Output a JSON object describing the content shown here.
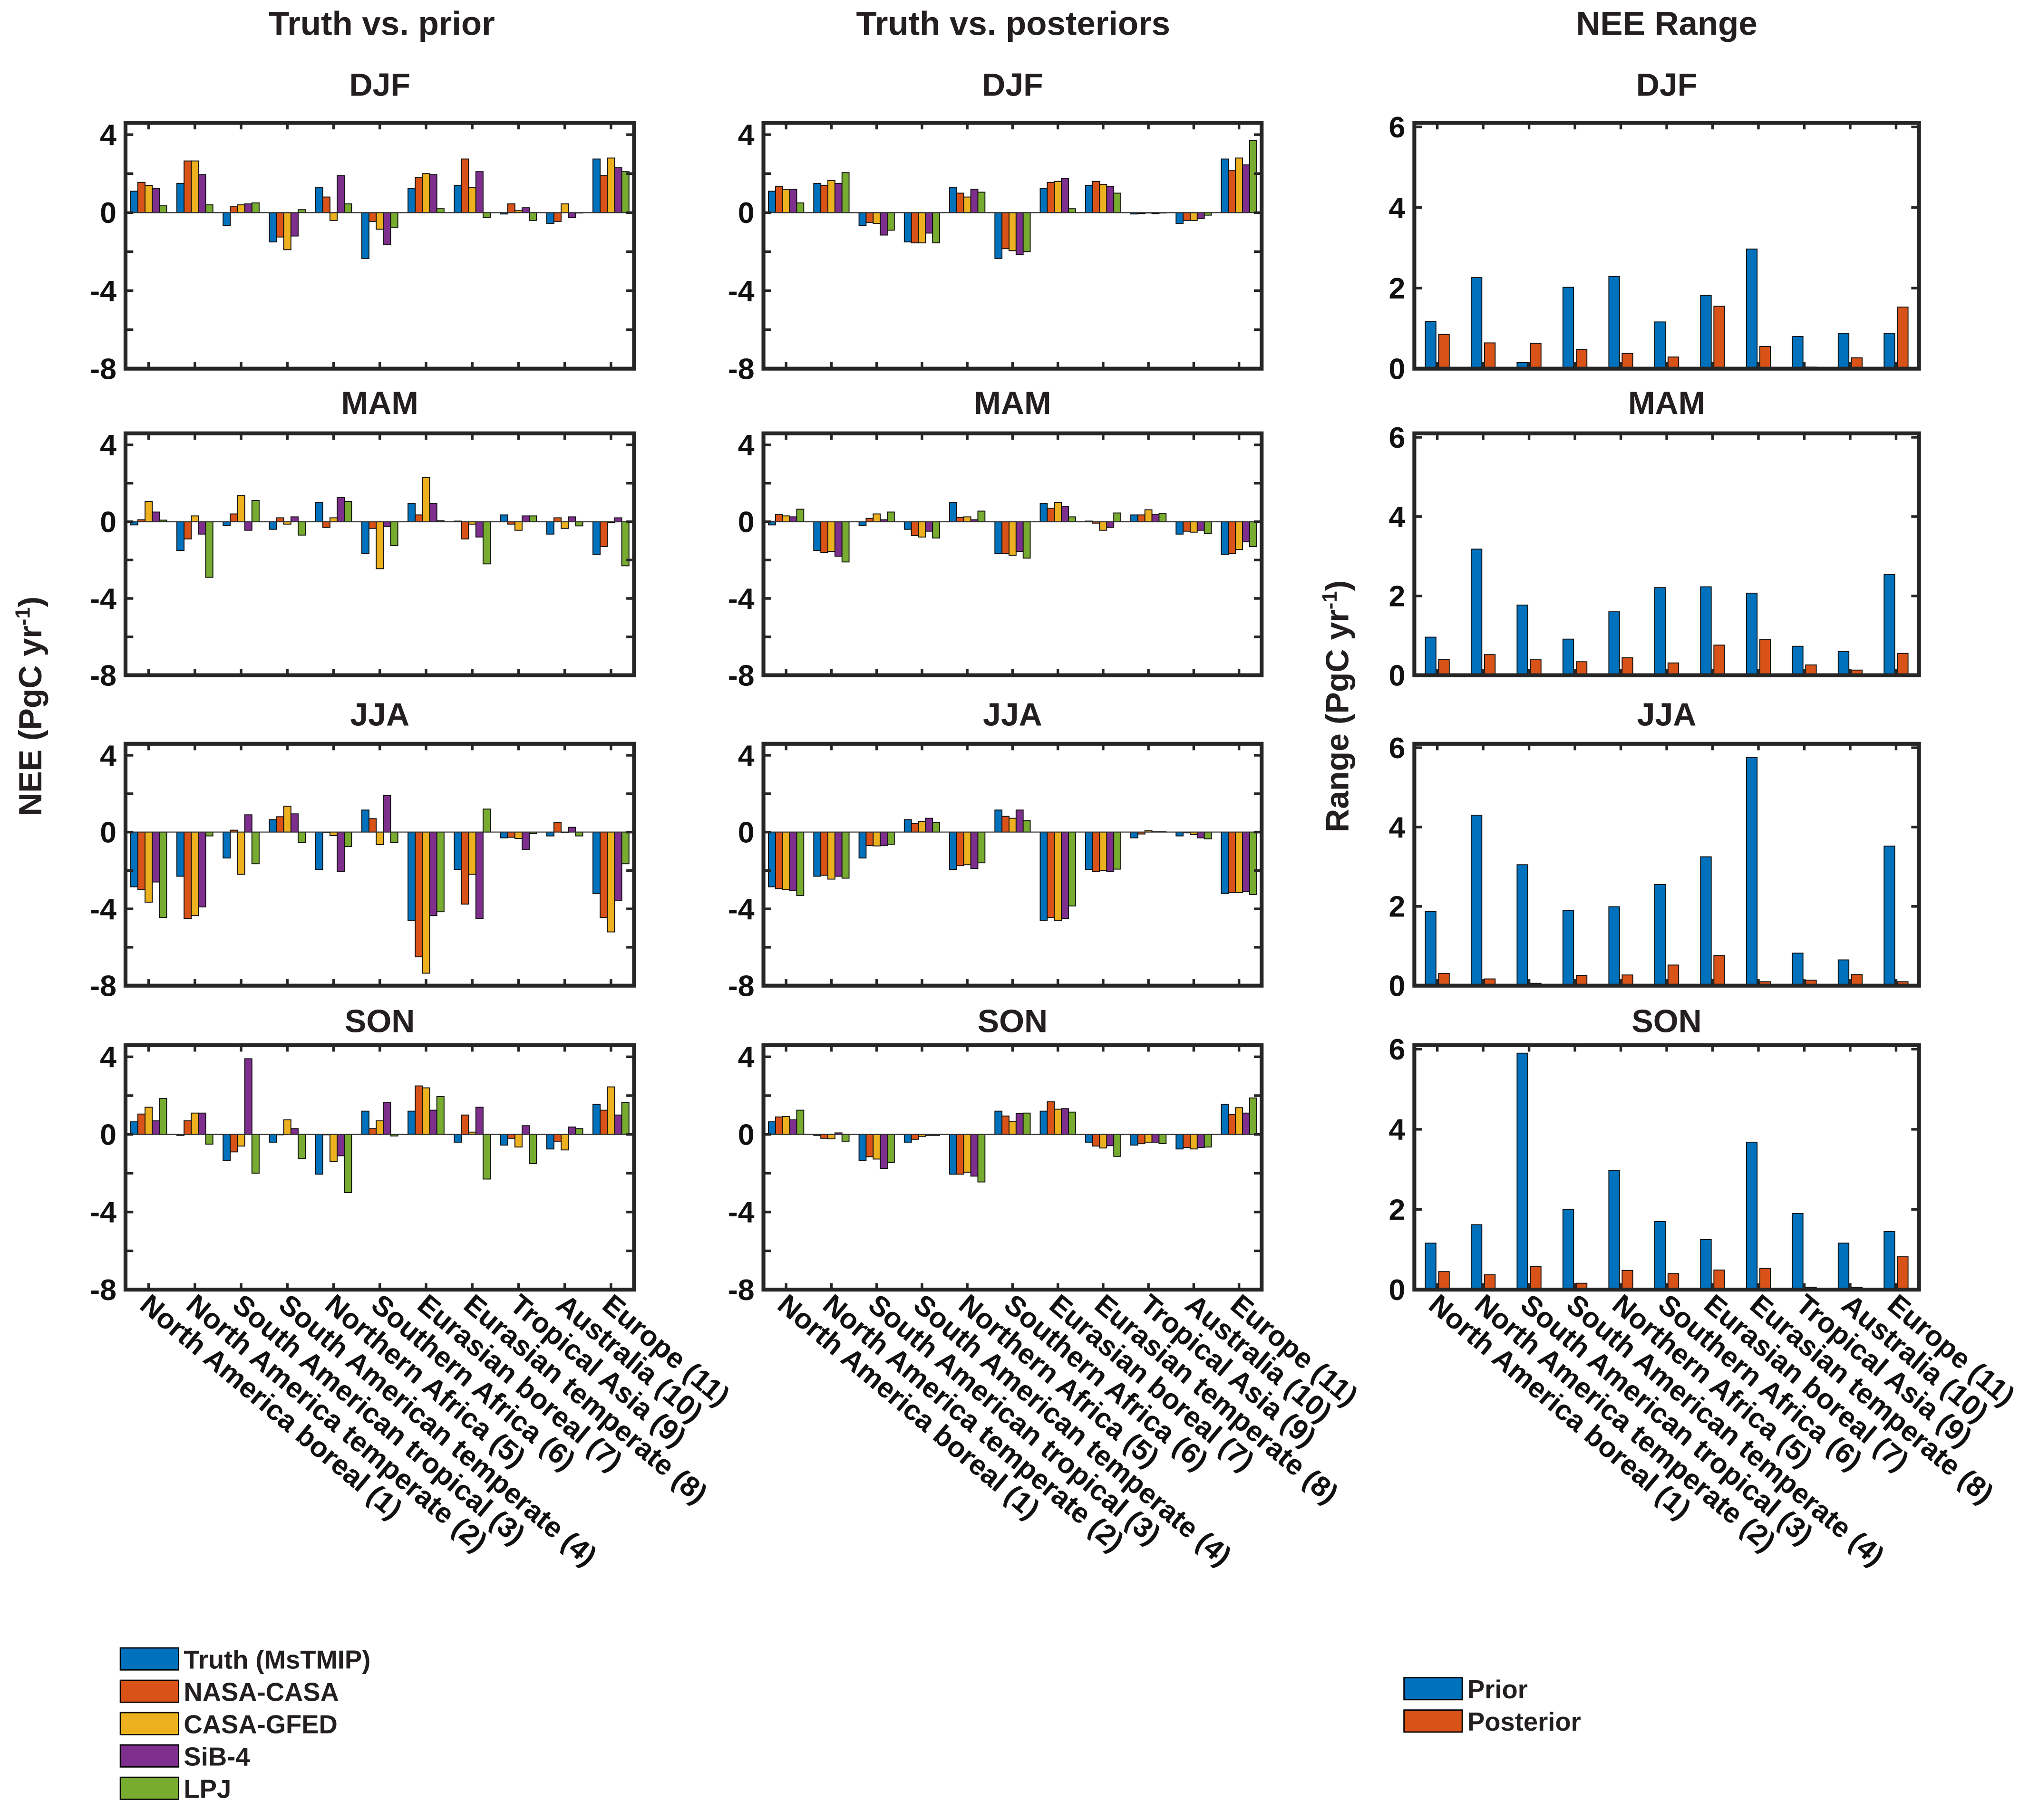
{
  "colors": {
    "Truth (MsTMIP)": "#0072BD",
    "NASA-CASA": "#D95319",
    "CASA-GFED": "#EDB120",
    "SiB-4": "#7E2F8E",
    "LPJ": "#77AC30",
    "Prior": "#0072BD",
    "Posterior": "#D95319"
  },
  "column_titles": [
    "Truth vs. prior",
    "Truth vs. posteriors",
    "NEE Range"
  ],
  "ylabels": {
    "nee": {
      "main": "NEE (PgC yr",
      "sup": "-1",
      "close": ")"
    },
    "range": {
      "main": "Range (PgC yr",
      "sup": "-1",
      "close": ")"
    }
  },
  "legend_left": [
    "Truth (MsTMIP)",
    "NASA-CASA",
    "CASA-GFED",
    "SiB-4",
    "LPJ"
  ],
  "legend_right": [
    "Prior",
    "Posterior"
  ],
  "chart_data": [
    {
      "type": "bar",
      "column": "Truth vs. prior",
      "title": "DJF",
      "ylim": [
        -8,
        4.6
      ],
      "yticks": [
        4,
        0,
        -4,
        -8
      ],
      "categories": [
        "North America boreal (1)",
        "North America temperate (2)",
        "South American tropical (3)",
        "South American temperate (4)",
        "Northern Africa (5)",
        "Southern Africa (6)",
        "Eurasian boreal (7)",
        "Eurasian temperate (8)",
        "Tropical Asia (9)",
        "Australia (10)",
        "Europe (11)"
      ],
      "series": [
        {
          "name": "Truth (MsTMIP)",
          "values": [
            1.1,
            1.5,
            -0.65,
            -1.5,
            1.3,
            -2.35,
            1.25,
            1.4,
            -0.07,
            -0.55,
            2.75
          ]
        },
        {
          "name": "NASA-CASA",
          "values": [
            1.55,
            2.65,
            0.3,
            -1.25,
            0.8,
            -0.45,
            1.8,
            2.75,
            0.45,
            -0.45,
            1.9
          ]
        },
        {
          "name": "CASA-GFED",
          "values": [
            1.4,
            2.65,
            0.4,
            -1.9,
            -0.4,
            -0.85,
            2.0,
            1.3,
            0.1,
            0.45,
            2.8
          ]
        },
        {
          "name": "SiB-4",
          "values": [
            1.25,
            1.95,
            0.45,
            -1.2,
            1.9,
            -1.65,
            1.95,
            2.1,
            0.25,
            -0.25,
            2.3
          ]
        },
        {
          "name": "LPJ",
          "values": [
            0.35,
            0.4,
            0.5,
            0.15,
            0.45,
            -0.75,
            0.2,
            -0.25,
            -0.4,
            -0.02,
            2.1
          ]
        }
      ]
    },
    {
      "type": "bar",
      "column": "Truth vs. prior",
      "title": "MAM",
      "ylim": [
        -8,
        4.6
      ],
      "yticks": [
        4,
        0,
        -4,
        -8
      ],
      "series": [
        {
          "name": "Truth (MsTMIP)",
          "values": [
            -0.17,
            -1.5,
            -0.2,
            -0.4,
            1.0,
            -1.65,
            0.95,
            0.03,
            0.35,
            -0.65,
            -1.7
          ]
        },
        {
          "name": "NASA-CASA",
          "values": [
            0.1,
            -0.9,
            0.4,
            0.2,
            -0.3,
            -0.35,
            0.35,
            -0.9,
            -0.13,
            0.2,
            -1.3
          ]
        },
        {
          "name": "CASA-GFED",
          "values": [
            1.05,
            0.3,
            1.35,
            -0.13,
            0.2,
            -2.45,
            2.3,
            -0.13,
            -0.45,
            -0.35,
            -0.05
          ]
        },
        {
          "name": "SiB-4",
          "values": [
            0.5,
            -0.65,
            -0.45,
            0.25,
            1.25,
            -0.25,
            0.95,
            -0.8,
            0.3,
            0.25,
            0.2
          ]
        },
        {
          "name": "LPJ",
          "values": [
            0.08,
            -2.9,
            1.1,
            -0.7,
            1.05,
            -1.25,
            0.05,
            -2.2,
            0.3,
            -0.22,
            -2.3
          ]
        }
      ]
    },
    {
      "type": "bar",
      "column": "Truth vs. prior",
      "title": "JJA",
      "ylim": [
        -8,
        4.6
      ],
      "yticks": [
        4,
        0,
        -4,
        -8
      ],
      "series": [
        {
          "name": "Truth (MsTMIP)",
          "values": [
            -2.85,
            -2.3,
            -1.35,
            0.65,
            -1.95,
            1.15,
            -4.6,
            -1.95,
            -0.3,
            -0.2,
            -3.2
          ]
        },
        {
          "name": "NASA-CASA",
          "values": [
            -3.0,
            -4.5,
            0.1,
            0.8,
            -0.03,
            0.7,
            -6.5,
            -3.75,
            -0.27,
            0.5,
            -4.45
          ]
        },
        {
          "name": "CASA-GFED",
          "values": [
            -3.65,
            -4.35,
            -2.2,
            1.35,
            -0.18,
            -0.65,
            -7.35,
            -2.2,
            -0.33,
            0,
            -5.2
          ]
        },
        {
          "name": "SiB-4",
          "values": [
            -2.6,
            -3.9,
            0.9,
            0.95,
            -2.05,
            1.9,
            -4.35,
            -4.5,
            -0.9,
            0.25,
            -3.55
          ]
        },
        {
          "name": "LPJ",
          "values": [
            -4.45,
            -0.2,
            -1.65,
            -0.55,
            -0.75,
            -0.55,
            -4.15,
            1.2,
            -0.08,
            -0.2,
            -1.65
          ]
        }
      ]
    },
    {
      "type": "bar",
      "column": "Truth vs. prior",
      "title": "SON",
      "ylim": [
        -8,
        4.6
      ],
      "yticks": [
        4,
        0,
        -4,
        -8
      ],
      "series": [
        {
          "name": "Truth (MsTMIP)",
          "values": [
            0.65,
            -0.05,
            -1.35,
            -0.4,
            -2.05,
            1.2,
            1.2,
            -0.4,
            -0.55,
            -0.75,
            1.55
          ]
        },
        {
          "name": "NASA-CASA",
          "values": [
            1.05,
            0.7,
            -0.9,
            0,
            -0.02,
            0.3,
            2.5,
            1.0,
            -0.2,
            -0.35,
            1.25
          ]
        },
        {
          "name": "CASA-GFED",
          "values": [
            1.4,
            1.1,
            -0.6,
            0.75,
            -1.4,
            0.7,
            2.4,
            0.12,
            -0.65,
            -0.8,
            2.45
          ]
        },
        {
          "name": "SiB-4",
          "values": [
            0.7,
            1.1,
            3.9,
            0.3,
            -1.1,
            1.65,
            1.25,
            1.4,
            0.45,
            0.38,
            1.0
          ]
        },
        {
          "name": "LPJ",
          "values": [
            1.85,
            -0.5,
            -2.0,
            -1.25,
            -3.0,
            -0.08,
            1.95,
            -2.3,
            -1.5,
            0.3,
            1.65
          ]
        }
      ]
    },
    {
      "type": "bar",
      "column": "Truth vs. posteriors",
      "title": "DJF",
      "ylim": [
        -8,
        4.6
      ],
      "yticks": [
        4,
        0,
        -4,
        -8
      ],
      "series": [
        {
          "name": "Truth (MsTMIP)",
          "values": [
            1.1,
            1.5,
            -0.65,
            -1.5,
            1.3,
            -2.35,
            1.25,
            1.4,
            -0.07,
            -0.55,
            2.75
          ]
        },
        {
          "name": "NASA-CASA",
          "values": [
            1.35,
            1.4,
            -0.5,
            -1.55,
            1.0,
            -1.85,
            1.55,
            1.6,
            -0.05,
            -0.4,
            2.15
          ]
        },
        {
          "name": "CASA-GFED",
          "values": [
            1.2,
            1.65,
            -0.55,
            -1.55,
            0.8,
            -1.95,
            1.6,
            1.45,
            0,
            -0.4,
            2.8
          ]
        },
        {
          "name": "SiB-4",
          "values": [
            1.2,
            1.5,
            -1.15,
            -1.05,
            1.2,
            -2.15,
            1.75,
            1.35,
            -0.05,
            -0.3,
            2.45
          ]
        },
        {
          "name": "LPJ",
          "values": [
            0.5,
            2.05,
            -0.9,
            -1.55,
            1.05,
            -2.0,
            0.2,
            1.0,
            0,
            -0.13,
            3.7
          ]
        }
      ]
    },
    {
      "type": "bar",
      "column": "Truth vs. posteriors",
      "title": "MAM",
      "ylim": [
        -8,
        4.6
      ],
      "yticks": [
        4,
        0,
        -4,
        -8
      ],
      "series": [
        {
          "name": "Truth (MsTMIP)",
          "values": [
            -0.17,
            -1.5,
            -0.2,
            -0.4,
            1.0,
            -1.65,
            0.95,
            0.03,
            0.35,
            -0.65,
            -1.7
          ]
        },
        {
          "name": "NASA-CASA",
          "values": [
            0.37,
            -1.6,
            0.17,
            -0.73,
            0.22,
            -1.65,
            0.7,
            -0.08,
            0.35,
            -0.5,
            -1.65
          ]
        },
        {
          "name": "CASA-GFED",
          "values": [
            0.3,
            -1.55,
            0.4,
            -0.8,
            0.25,
            -1.75,
            1.0,
            -0.45,
            0.62,
            -0.55,
            -1.45
          ]
        },
        {
          "name": "SiB-4",
          "values": [
            0.25,
            -1.8,
            0.1,
            -0.5,
            0.1,
            -1.55,
            0.8,
            -0.3,
            0.37,
            -0.45,
            -1.05
          ]
        },
        {
          "name": "LPJ",
          "values": [
            0.65,
            -2.1,
            0.5,
            -0.85,
            0.55,
            -1.9,
            0.25,
            0.45,
            0.42,
            -0.62,
            -1.3
          ]
        }
      ]
    },
    {
      "type": "bar",
      "column": "Truth vs. posteriors",
      "title": "JJA",
      "ylim": [
        -8,
        4.6
      ],
      "yticks": [
        4,
        0,
        -4,
        -8
      ],
      "series": [
        {
          "name": "Truth (MsTMIP)",
          "values": [
            -2.85,
            -2.3,
            -1.35,
            0.65,
            -1.95,
            1.15,
            -4.6,
            -1.95,
            -0.3,
            -0.2,
            -3.2
          ]
        },
        {
          "name": "NASA-CASA",
          "values": [
            -2.95,
            -2.25,
            -0.7,
            0.45,
            -1.75,
            0.82,
            -4.45,
            -2.05,
            -0.1,
            -0.04,
            -3.15
          ]
        },
        {
          "name": "CASA-GFED",
          "values": [
            -3.0,
            -2.45,
            -0.72,
            0.55,
            -1.7,
            0.72,
            -4.6,
            -2.0,
            0.07,
            -0.13,
            -3.15
          ]
        },
        {
          "name": "SiB-4",
          "values": [
            -3.05,
            -2.3,
            -0.7,
            0.72,
            -1.9,
            1.15,
            -4.5,
            -2.05,
            0.02,
            -0.3,
            -3.1
          ]
        },
        {
          "name": "LPJ",
          "values": [
            -3.3,
            -2.4,
            -0.63,
            0.5,
            -1.6,
            0.6,
            -3.85,
            -1.93,
            0.02,
            -0.35,
            -3.25
          ]
        }
      ]
    },
    {
      "type": "bar",
      "column": "Truth vs. posteriors",
      "title": "SON",
      "ylim": [
        -8,
        4.6
      ],
      "yticks": [
        4,
        0,
        -4,
        -8
      ],
      "series": [
        {
          "name": "Truth (MsTMIP)",
          "values": [
            0.65,
            -0.05,
            -1.35,
            -0.4,
            -2.05,
            1.2,
            1.2,
            -0.4,
            -0.55,
            -0.75,
            1.55
          ]
        },
        {
          "name": "NASA-CASA",
          "values": [
            0.9,
            -0.2,
            -1.15,
            -0.25,
            -2.05,
            0.95,
            1.68,
            -0.6,
            -0.48,
            -0.67,
            1.03
          ]
        },
        {
          "name": "CASA-GFED",
          "values": [
            0.92,
            -0.23,
            -1.27,
            -0.1,
            -1.95,
            0.68,
            1.3,
            -0.7,
            -0.4,
            -0.75,
            1.38
          ]
        },
        {
          "name": "SiB-4",
          "values": [
            0.75,
            0.08,
            -1.75,
            -0.05,
            -2.15,
            1.07,
            1.33,
            -0.58,
            -0.4,
            -0.67,
            1.1
          ]
        },
        {
          "name": "LPJ",
          "values": [
            1.25,
            -0.35,
            -1.45,
            -0.05,
            -2.45,
            1.1,
            1.15,
            -1.13,
            -0.47,
            -0.65,
            1.88
          ]
        }
      ]
    },
    {
      "type": "bar",
      "column": "NEE Range",
      "title": "DJF",
      "ylim": [
        0,
        6.1
      ],
      "yticks": [
        6,
        4,
        2,
        0
      ],
      "series": [
        {
          "name": "Prior",
          "values": [
            1.17,
            2.26,
            0.15,
            2.02,
            2.29,
            1.16,
            1.82,
            2.97,
            0.8,
            0.88,
            0.88
          ]
        },
        {
          "name": "Posterior",
          "values": [
            0.85,
            0.64,
            0.63,
            0.48,
            0.38,
            0.29,
            1.55,
            0.55,
            0.04,
            0.27,
            1.53
          ]
        }
      ]
    },
    {
      "type": "bar",
      "column": "NEE Range",
      "title": "MAM",
      "ylim": [
        0,
        6.1
      ],
      "yticks": [
        6,
        4,
        2,
        0
      ],
      "series": [
        {
          "name": "Prior",
          "values": [
            0.96,
            3.18,
            1.77,
            0.91,
            1.6,
            2.21,
            2.23,
            2.07,
            0.73,
            0.6,
            2.54
          ]
        },
        {
          "name": "Posterior",
          "values": [
            0.4,
            0.52,
            0.39,
            0.34,
            0.44,
            0.31,
            0.76,
            0.9,
            0.26,
            0.13,
            0.55
          ]
        }
      ]
    },
    {
      "type": "bar",
      "column": "NEE Range",
      "title": "JJA",
      "ylim": [
        0,
        6.1
      ],
      "yticks": [
        6,
        4,
        2,
        0
      ],
      "series": [
        {
          "name": "Prior",
          "values": [
            1.87,
            4.3,
            3.05,
            1.9,
            1.99,
            2.55,
            3.25,
            5.75,
            0.82,
            0.65,
            3.52
          ]
        },
        {
          "name": "Posterior",
          "values": [
            0.31,
            0.17,
            0.06,
            0.26,
            0.27,
            0.52,
            0.76,
            0.1,
            0.14,
            0.28,
            0.1
          ]
        }
      ]
    },
    {
      "type": "bar",
      "column": "NEE Range",
      "title": "SON",
      "ylim": [
        0,
        6.1
      ],
      "yticks": [
        6,
        4,
        2,
        0
      ],
      "series": [
        {
          "name": "Prior",
          "values": [
            1.16,
            1.62,
            5.9,
            2.0,
            2.97,
            1.7,
            1.25,
            3.68,
            1.9,
            1.16,
            1.45
          ]
        },
        {
          "name": "Posterior",
          "values": [
            0.45,
            0.37,
            0.58,
            0.16,
            0.48,
            0.4,
            0.49,
            0.53,
            0.06,
            0.06,
            0.82
          ]
        }
      ]
    }
  ]
}
